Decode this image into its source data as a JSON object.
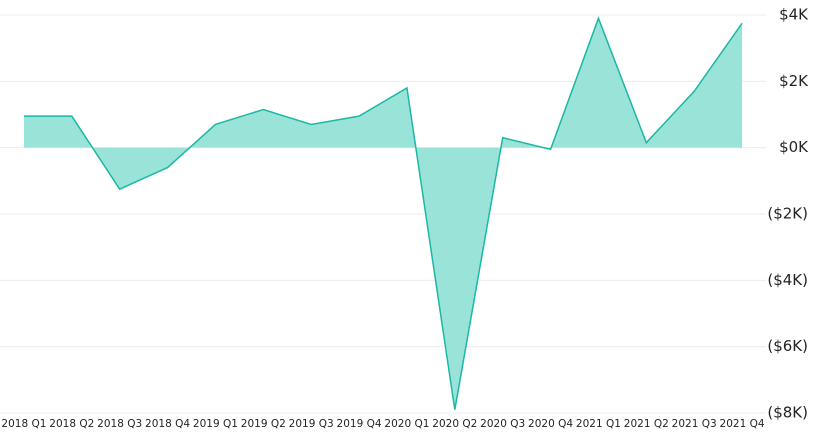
{
  "chart_data": {
    "type": "area",
    "categories": [
      "2018 Q1",
      "2018 Q2",
      "2018 Q3",
      "2018 Q4",
      "2019 Q1",
      "2019 Q2",
      "2019 Q3",
      "2019 Q4",
      "2020 Q1",
      "2020 Q2",
      "2020 Q3",
      "2020 Q4",
      "2021 Q1",
      "2021 Q2",
      "2021 Q3",
      "2021 Q4"
    ],
    "values": [
      950,
      950,
      -1250,
      -600,
      700,
      1150,
      700,
      950,
      1800,
      -7900,
      300,
      -50,
      3900,
      150,
      1700,
      3750
    ],
    "color": "#1bb8a4",
    "fill": "#9ae3d9",
    "ylim": [
      -8000,
      4000
    ],
    "yticks": [
      {
        "value": 4000,
        "label": "$4K"
      },
      {
        "value": 2000,
        "label": "$2K"
      },
      {
        "value": 0,
        "label": "$0K"
      },
      {
        "value": -2000,
        "label": "($2K)"
      },
      {
        "value": -4000,
        "label": "($4K)"
      },
      {
        "value": -6000,
        "label": "($6K)"
      },
      {
        "value": -8000,
        "label": "($8K)"
      }
    ],
    "grid": true
  }
}
